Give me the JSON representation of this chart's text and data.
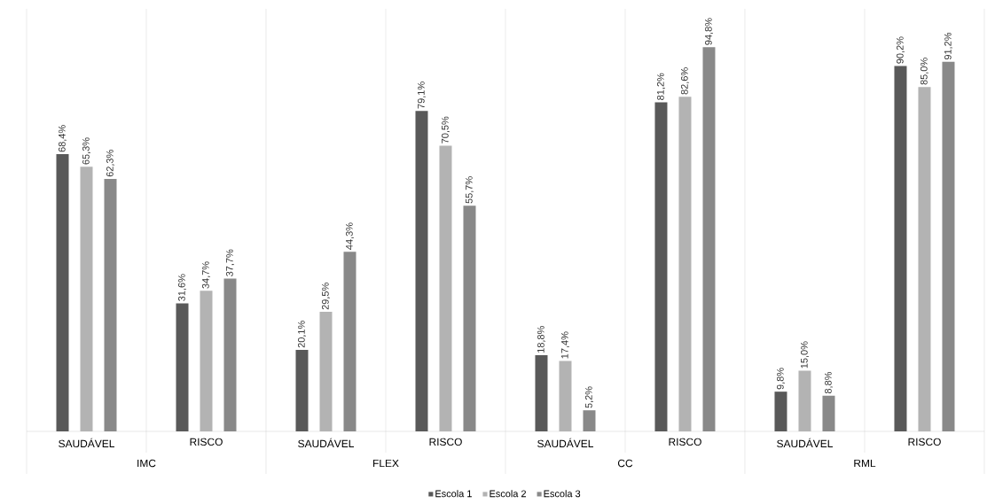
{
  "chart_data": {
    "type": "bar",
    "categories": [
      "SAUDÁVEL",
      "RISCO",
      "SAUDÁVEL",
      "RISCO",
      "SAUDÁVEL",
      "RISCO",
      "SAUDÁVEL",
      "RISCO"
    ],
    "annotations": [
      "IMC",
      "FLEX",
      "CC",
      "RML"
    ],
    "series": [
      {
        "name": "Escola 1",
        "color": "#595959",
        "values": [
          68.4,
          31.6,
          20.1,
          79.1,
          18.8,
          81.2,
          9.8,
          90.2
        ],
        "value_labels": [
          "68,4%",
          "31,6%",
          "20,1%",
          "79,1%",
          "18,8%",
          "81,2%",
          "9,8%",
          "90,2%"
        ]
      },
      {
        "name": "Escola 2",
        "color": "#b3b3b3",
        "values": [
          65.3,
          34.7,
          29.5,
          70.5,
          17.4,
          82.6,
          15.0,
          85.0
        ],
        "value_labels": [
          "65,3%",
          "34,7%",
          "29,5%",
          "70,5%",
          "17,4%",
          "82,6%",
          "15,0%",
          "85,0%"
        ]
      },
      {
        "name": "Escola 3",
        "color": "#898989",
        "values": [
          62.3,
          37.7,
          44.3,
          55.7,
          5.2,
          94.8,
          8.8,
          91.2
        ],
        "value_labels": [
          "62,3%",
          "37,7%",
          "44,3%",
          "55,7%",
          "5,2%",
          "94,8%",
          "8,8%",
          "91,2%"
        ]
      }
    ],
    "legend": "bottom"
  }
}
